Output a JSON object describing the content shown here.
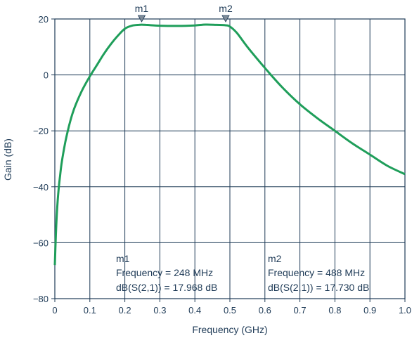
{
  "chart_data": {
    "type": "line",
    "xlabel": "Frequency (GHz)",
    "ylabel": "Gain (dB)",
    "xlim": [
      0,
      1.0
    ],
    "ylim": [
      -80,
      20
    ],
    "xticks": [
      "0",
      "0.1",
      "0.2",
      "0.3",
      "0.4",
      "0.5",
      "0.6",
      "0.7",
      "0.8",
      "0.9",
      "1.0"
    ],
    "yticks": [
      "20",
      "0",
      "−20",
      "−40",
      "−60",
      "−80"
    ],
    "grid": true,
    "line_color": "#1f9e5a",
    "series": [
      {
        "x": [
          0.0,
          0.003,
          0.006,
          0.01,
          0.015,
          0.02,
          0.03,
          0.04,
          0.05,
          0.06,
          0.08,
          0.1,
          0.12,
          0.14,
          0.16,
          0.18,
          0.2,
          0.22,
          0.24,
          0.248,
          0.26,
          0.3,
          0.35,
          0.4,
          0.43,
          0.46,
          0.488,
          0.5,
          0.52,
          0.55,
          0.6,
          0.65,
          0.7,
          0.75,
          0.8,
          0.85,
          0.9,
          0.95,
          1.0
        ],
        "y": [
          -68,
          -57,
          -49,
          -42,
          -36,
          -31,
          -24,
          -18.5,
          -14,
          -10.5,
          -5,
          -0.5,
          3.5,
          7.5,
          11,
          14,
          16.5,
          17.6,
          17.9,
          17.968,
          17.9,
          17.6,
          17.5,
          17.7,
          18.0,
          17.9,
          17.73,
          17.3,
          15,
          10,
          2.5,
          -4.5,
          -10.5,
          -15.5,
          -20,
          -24.5,
          -28.5,
          -32.5,
          -35.5
        ]
      }
    ],
    "markers": [
      {
        "name": "m1",
        "x": 0.248,
        "y": 17.968
      },
      {
        "name": "m2",
        "x": 0.488,
        "y": 17.73
      }
    ],
    "annotations": [
      {
        "lines": [
          "m1",
          "Frequency = 248 MHz",
          "dB(S(2,1)) = 17.968 dB"
        ]
      },
      {
        "lines": [
          "m2",
          "Frequency = 488 MHz",
          "dB(S(2,1)) = 17.730 dB"
        ]
      }
    ]
  }
}
